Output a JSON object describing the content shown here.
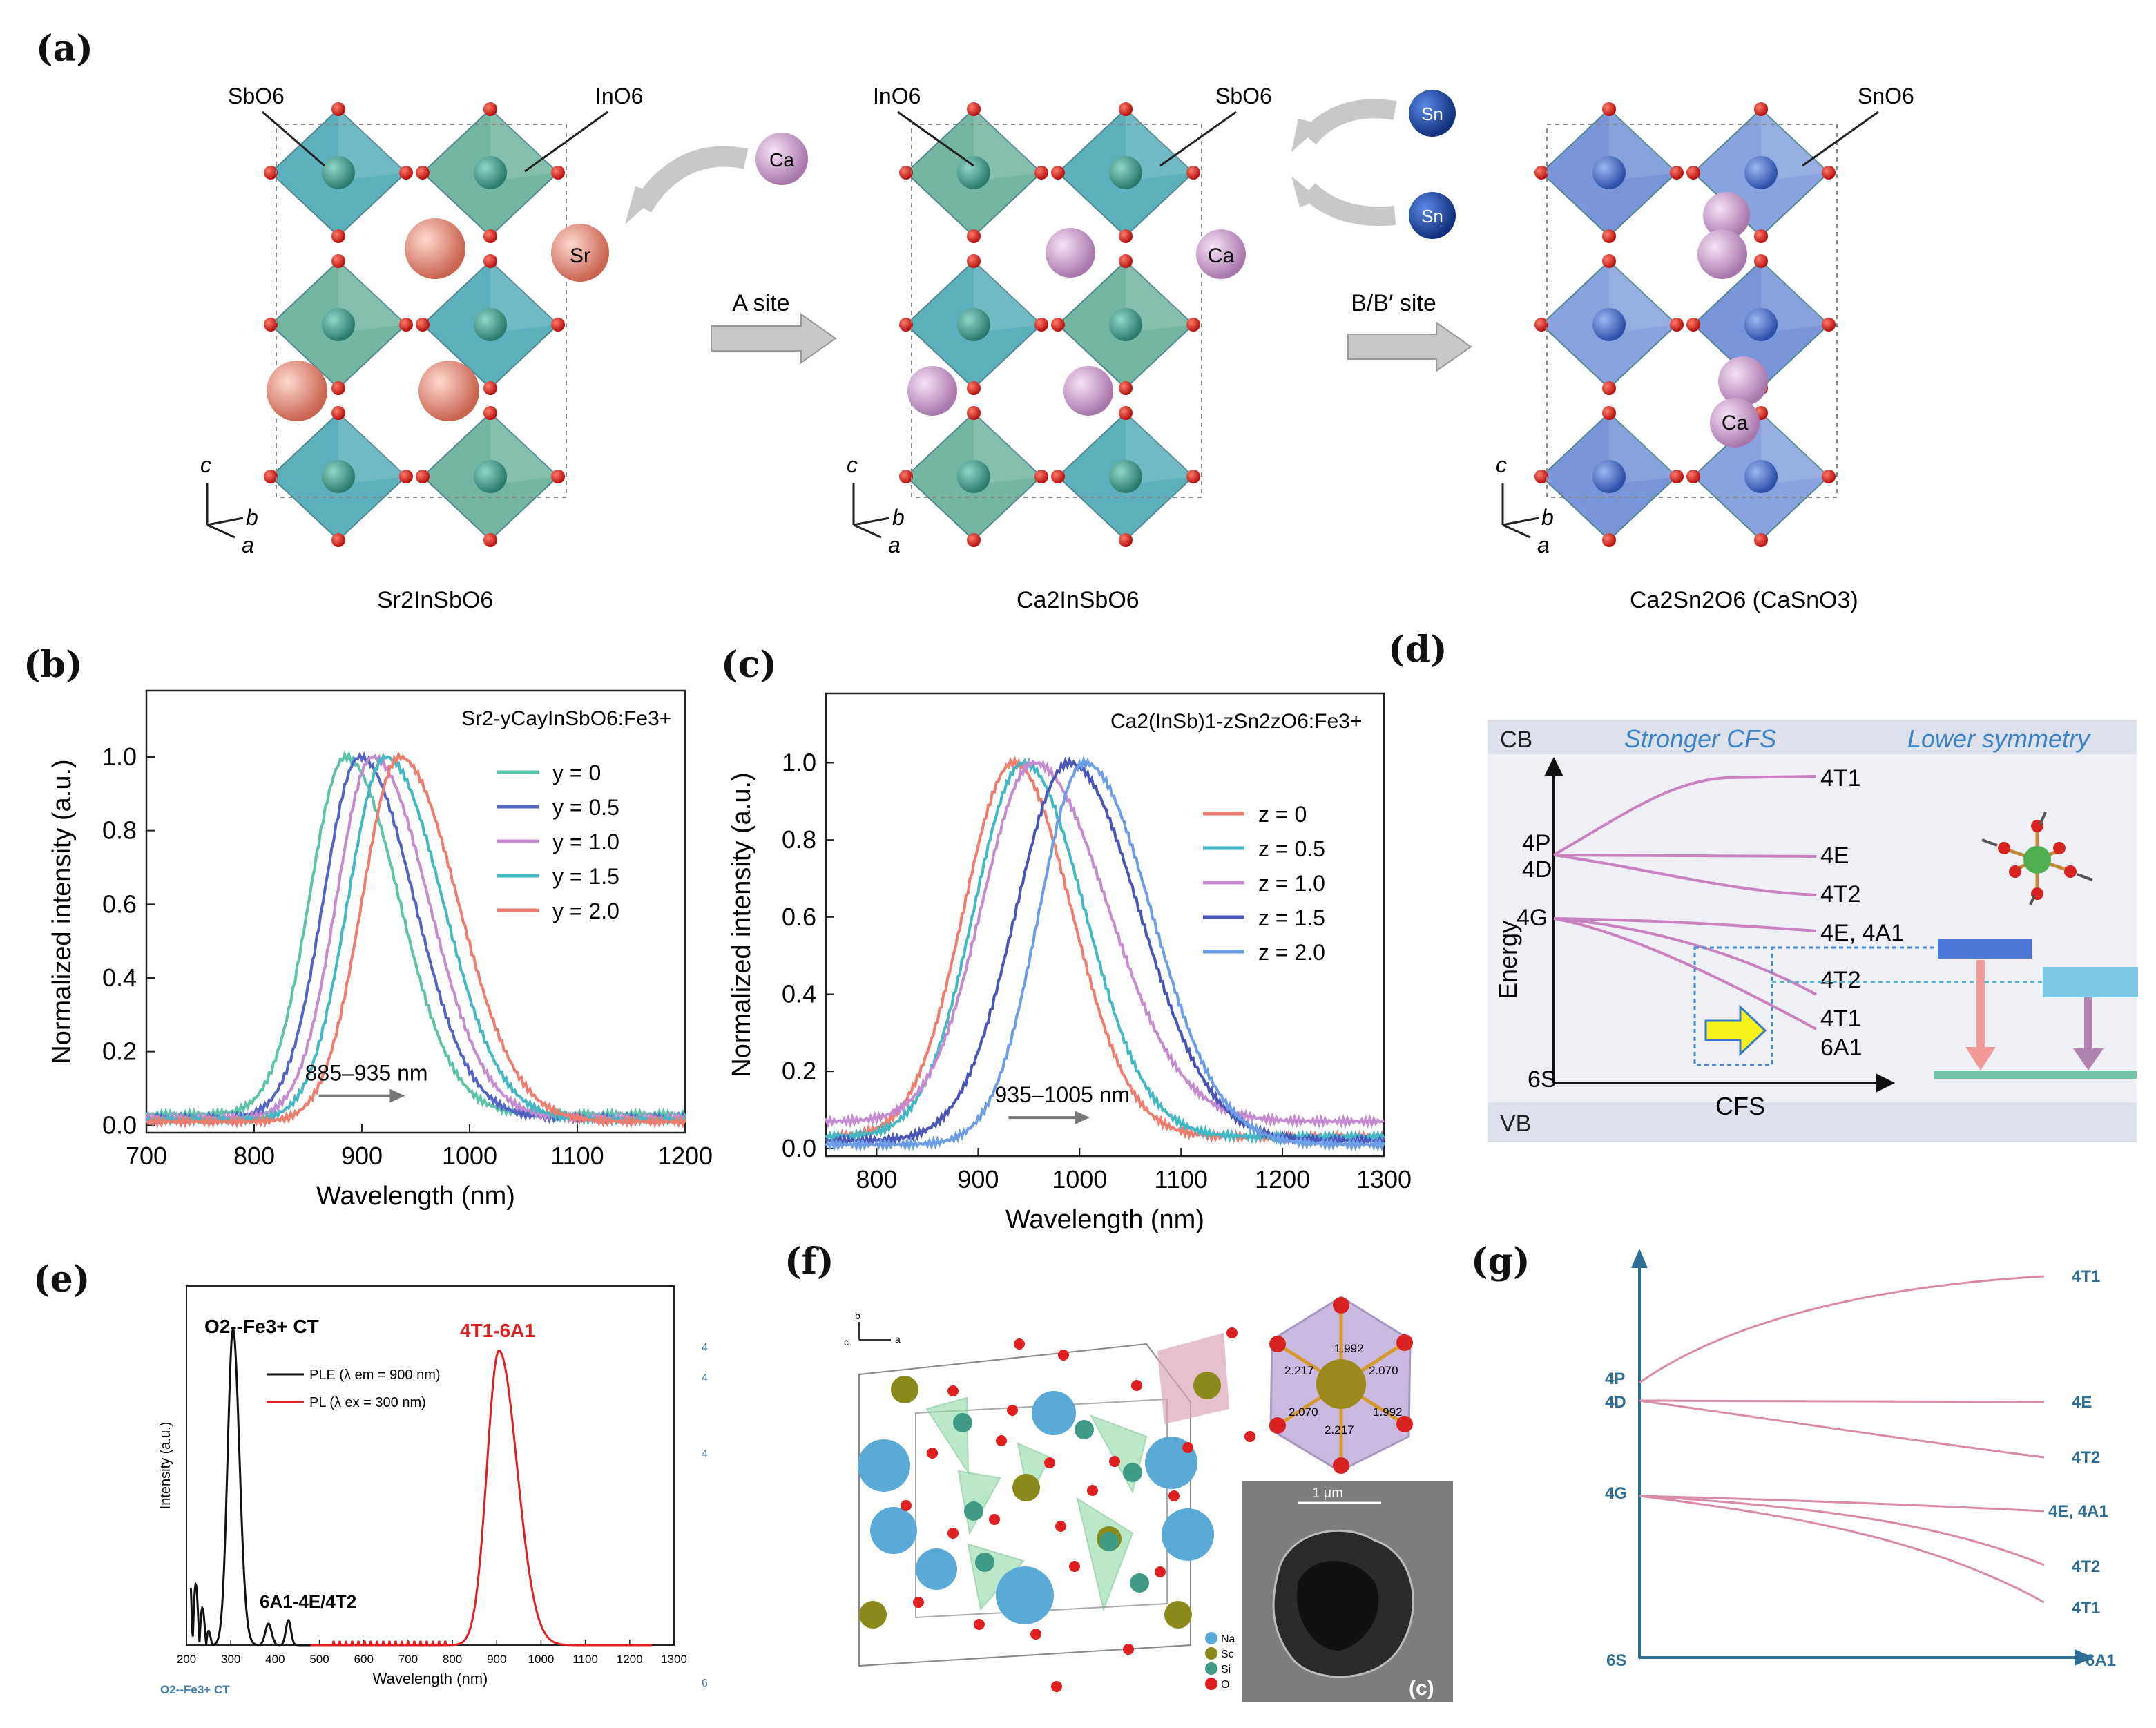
{
  "panel_labels": {
    "a": "(a)",
    "b": "(b)",
    "c": "(c)",
    "d": "(d)",
    "e": "(e)",
    "f": "(f)",
    "g": "(g)"
  },
  "panel_a": {
    "s1": {
      "label_sbo6": "SbO6",
      "label_ino6": "InO6",
      "ion_sr": "Sr",
      "name": "Sr2InSbO6"
    },
    "s2": {
      "label_ino6": "InO6",
      "label_sbo6": "SbO6",
      "ion_ca": "Ca",
      "name": "Ca2InSbO6"
    },
    "s3": {
      "label_sno6": "SnO6",
      "ion_ca": "Ca",
      "name": "Ca2Sn2O6 (CaSnO3)"
    },
    "ion_ca_in": "Ca",
    "ion_sn1": "Sn",
    "ion_sn2": "Sn",
    "arrow_a": "A site",
    "arrow_b": "B/B′ site",
    "axes": {
      "c": "c",
      "b": "b",
      "a": "a"
    },
    "colors": {
      "sbo6": "#3aa0ae",
      "ino6": "#55a890",
      "sno6": "#5b7fd1",
      "sr": "#e28576",
      "ca": "#c79ac8",
      "sn": "#1f4ea3",
      "o": "#d7221f"
    }
  },
  "chart_data": [
    {
      "id": "b",
      "type": "line",
      "title": "Sr2-yCayInSbO6:Fe3+",
      "xlabel": "Wavelength (nm)",
      "ylabel": "Normalized intensity (a.u.)",
      "xlim": [
        700,
        1200
      ],
      "ylim": [
        -0.02,
        1.18
      ],
      "xticks": [
        700,
        800,
        900,
        1000,
        1100,
        1200
      ],
      "yticks": [
        0.0,
        0.2,
        0.4,
        0.6,
        0.8,
        1.0
      ],
      "annotation": "885–935 nm",
      "series": [
        {
          "name": "y = 0",
          "color": "#5cc3a8",
          "peak": 885,
          "wl": 56,
          "wr": 82,
          "base": 0.03
        },
        {
          "name": "y = 0.5",
          "color": "#5363c6",
          "peak": 898,
          "wl": 56,
          "wr": 84,
          "base": 0.02
        },
        {
          "name": "y = 1.0",
          "color": "#c58ad0",
          "peak": 910,
          "wl": 56,
          "wr": 86,
          "base": 0.02
        },
        {
          "name": "y = 1.5",
          "color": "#42b8c5",
          "peak": 922,
          "wl": 58,
          "wr": 88,
          "base": 0.015
        },
        {
          "name": "y = 2.0",
          "color": "#ee7d6e",
          "peak": 935,
          "wl": 58,
          "wr": 90,
          "base": 0.01
        }
      ]
    },
    {
      "id": "c",
      "type": "line",
      "title": "Ca2(InSb)1-zSn2zO6:Fe3+",
      "xlabel": "Wavelength (nm)",
      "ylabel": "Normalized intensity (a.u.)",
      "xlim": [
        750,
        1300
      ],
      "ylim": [
        -0.02,
        1.18
      ],
      "xticks": [
        800,
        900,
        1000,
        1100,
        1200,
        1300
      ],
      "yticks": [
        0.0,
        0.2,
        0.4,
        0.6,
        0.8,
        1.0
      ],
      "annotation": "935–1005 nm",
      "series": [
        {
          "name": "z = 0",
          "color": "#ee7d6e",
          "peak": 935,
          "wl": 82,
          "wr": 95,
          "base": 0.03
        },
        {
          "name": "z = 0.5",
          "color": "#42b8c5",
          "peak": 945,
          "wl": 82,
          "wr": 100,
          "base": 0.03
        },
        {
          "name": "z = 1.0",
          "color": "#c58ad0",
          "peak": 955,
          "wl": 85,
          "wr": 120,
          "base": 0.07
        },
        {
          "name": "z = 1.5",
          "color": "#4a55b8",
          "peak": 990,
          "wl": 88,
          "wr": 115,
          "base": 0.02
        },
        {
          "name": "z = 2.0",
          "color": "#6b9ee6",
          "peak": 1005,
          "wl": 75,
          "wr": 110,
          "base": 0.01
        }
      ]
    },
    {
      "id": "e",
      "type": "line",
      "xlabel": "Wavelength (nm)",
      "ylabel": "Intensity (a.u.)",
      "xlim": [
        200,
        1300
      ],
      "xticks": [
        200,
        300,
        400,
        500,
        600,
        700,
        800,
        900,
        1000,
        1100,
        1200,
        1300
      ],
      "series": [
        {
          "name": "PLE (λ em = 900 nm)",
          "color": "#111111",
          "peak": 305,
          "wl": 18,
          "wr": 25
        },
        {
          "name": "PL (λ ex = 300 nm)",
          "color": "#e02020",
          "peak": 905,
          "wl": 45,
          "wr": 65
        }
      ],
      "labels": {
        "ct": "O2--Fe3+ CT",
        "d_d": "6A1-4E/4T2",
        "pl": "4T1-6A1",
        "below_left": "O2--Fe3+ CT",
        "side1": "4",
        "side2": "4",
        "side3": "4",
        "side4": "6"
      }
    }
  ],
  "panel_d": {
    "cb": "CB",
    "vb": "VB",
    "head1": "Stronger CFS",
    "head2": "Lower symmetry",
    "ylabel": "Energy",
    "xlabel": "CFS",
    "left": {
      "p": "4P",
      "d": "4D",
      "g": "4G",
      "s": "6S"
    },
    "right": {
      "t1": "4T1",
      "e": "4E",
      "t2": "4T2",
      "ea": "4E, 4A1",
      "t2b": "4T2",
      "t1b": "4T1",
      "a1": "6A1"
    }
  },
  "panel_f": {
    "legend": [
      "Na",
      "Sc",
      "Si",
      "O"
    ],
    "legend_colors": [
      "#5aa9d6",
      "#8a8a1a",
      "#3f9a86",
      "#e02020"
    ],
    "bonds": [
      "1.992",
      "2.070",
      "2.217",
      "2.070",
      "1.992",
      "2.217"
    ],
    "scale": "1 μm",
    "sublabel": "(c)",
    "axes": {
      "b": "b",
      "c": "c",
      "a": "a"
    }
  },
  "panel_g": {
    "left": {
      "p": "4P",
      "d": "4D",
      "g": "4G",
      "s": "6S"
    },
    "right": {
      "t1": "4T1",
      "e": "4E",
      "t2": "4T2",
      "ea": "4E, 4A1",
      "t2b": "4T2",
      "t1b": "4T1",
      "a1": "6A1"
    }
  }
}
